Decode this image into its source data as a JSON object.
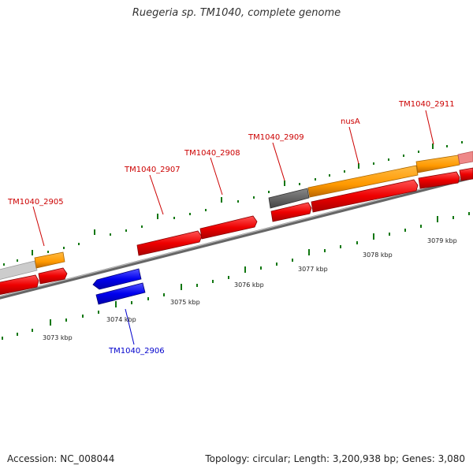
{
  "title": "Ruegeria sp. TM1040, complete genome",
  "footer": {
    "accession": "Accession: NC_008044",
    "summary": "Topology: circular; Length: 3,200,938 bp; Genes: 3,080"
  },
  "colors": {
    "forward_gene": "#ff0000",
    "reverse_gene": "#0000ff",
    "cds_orange": "#ff9900",
    "cds_grey": "#666666",
    "cds_light": "#cccccc",
    "cds_pink": "#ee8888",
    "tick": "#117711",
    "backbone": "#888888"
  },
  "gene_labels": [
    {
      "id": "TM1040_2905",
      "text": "TM1040_2905",
      "strand": "forward"
    },
    {
      "id": "TM1040_2906",
      "text": "TM1040_2906",
      "strand": "reverse"
    },
    {
      "id": "TM1040_2907",
      "text": "TM1040_2907",
      "strand": "forward"
    },
    {
      "id": "TM1040_2908",
      "text": "TM1040_2908",
      "strand": "forward"
    },
    {
      "id": "TM1040_2909",
      "text": "TM1040_2909",
      "strand": "forward"
    },
    {
      "id": "nusA",
      "text": "nusA",
      "strand": "forward"
    },
    {
      "id": "TM1040_2911",
      "text": "TM1040_2911",
      "strand": "forward"
    }
  ],
  "scale_labels": [
    "3073 kbp",
    "3074 kbp",
    "3075 kbp",
    "3076 kbp",
    "3077 kbp",
    "3078 kbp",
    "3079 kbp"
  ]
}
